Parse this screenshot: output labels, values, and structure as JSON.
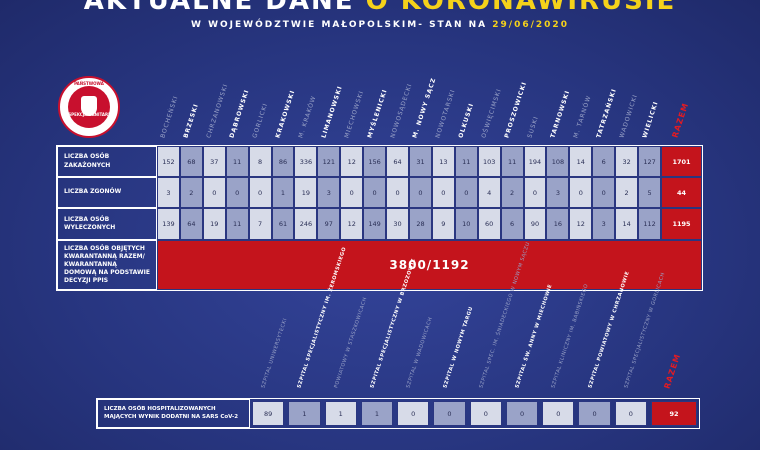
{
  "header": {
    "title": "AKTUALNE DANE",
    "title_accent": "O KORONAWIRUSIE",
    "subtitle": "W WOJEWÓDZTWIE MAŁOPOLSKIM- STAN NA",
    "date": "29/06/2020"
  },
  "logo": {
    "top": "PAŃSTWOWA",
    "bottom": "INSPEKCJA SANITARNA"
  },
  "districts": {
    "columns": [
      "BOCHEŃSKI",
      "BRZESKI",
      "CHRZANOWSKI",
      "DĄBROWSKI",
      "GORLICKI",
      "KRAKOWSKI",
      "M. KRAKÓW",
      "LIMANOWSKI",
      "MIECHOWSKI",
      "MYŚLENICKI",
      "NOWOSĄDECKI",
      "M. NOWY SĄCZ",
      "NOWOTARSKI",
      "OLKUSKI",
      "OŚWIĘCIMSKI",
      "PROSZOWICKI",
      "SUSKI",
      "TARNOWSKI",
      "M. TARNÓW",
      "TATRZAŃSKI",
      "WADOWICKI",
      "WIELICKI"
    ],
    "total_label": "RAZEM",
    "rows": [
      {
        "label": "LICZBA OSÓB ZAKAŻONYCH",
        "values": [
          152,
          68,
          37,
          11,
          8,
          86,
          336,
          121,
          12,
          156,
          64,
          31,
          13,
          11,
          103,
          11,
          194,
          108,
          14,
          6,
          32,
          127
        ],
        "total": 1701
      },
      {
        "label": "LICZBA ZGONÓW",
        "values": [
          3,
          2,
          0,
          0,
          0,
          1,
          19,
          3,
          0,
          0,
          0,
          0,
          0,
          0,
          4,
          2,
          0,
          3,
          0,
          0,
          2,
          5
        ],
        "total": 44
      },
      {
        "label": "LICZBA OSÓB WYLECZONYCH",
        "values": [
          139,
          64,
          19,
          11,
          7,
          61,
          246,
          97,
          12,
          149,
          30,
          28,
          9,
          10,
          60,
          6,
          90,
          16,
          12,
          3,
          14,
          112
        ],
        "total": 1195
      }
    ]
  },
  "quarantine": {
    "label": "LICZBA OSÓB OBJĘTYCH KWARANTANNĄ RAZEM/ KWARANTANNĄ DOMOWĄ NA PODSTAWIE DECYZJI PPIS",
    "value": "3800/1192"
  },
  "hospitals": {
    "columns": [
      "SZPITAL UNIWERSYTECKI",
      "SZPITAL SPECJALISTYCZNY IM. ŻEROMSKIEGO",
      "POWIATOWY W STASZKOWICACH",
      "SZPITAL SPECJALISTYCZNY W BRZOZOWIE",
      "SZPITAL W WADOWICACH",
      "SZPITAL W NOWYM TARGU",
      "SZPITAL SPEC. IM. ŚNIADECKIEGO W NOWYM SĄCZU",
      "SZPITAL ŚW. ANNY W MIECHOWIE",
      "SZPITAL KLINICZNY IM. BABIŃSKIEGO",
      "SZPITAL POWIATOWY W CHRZANOWIE",
      "SZPITAL SPECJALISTYCZNY W GORLICACH"
    ],
    "total_label": "RAZEM",
    "row": {
      "label": "LICZBA OSÓB HOSPITALIZOWANYCH MAJĄCYCH WYNIK DODATNI NA SARS CoV-2",
      "values": [
        89,
        1,
        1,
        1,
        0,
        0,
        0,
        0,
        0,
        0,
        0
      ],
      "total": 92
    }
  }
}
